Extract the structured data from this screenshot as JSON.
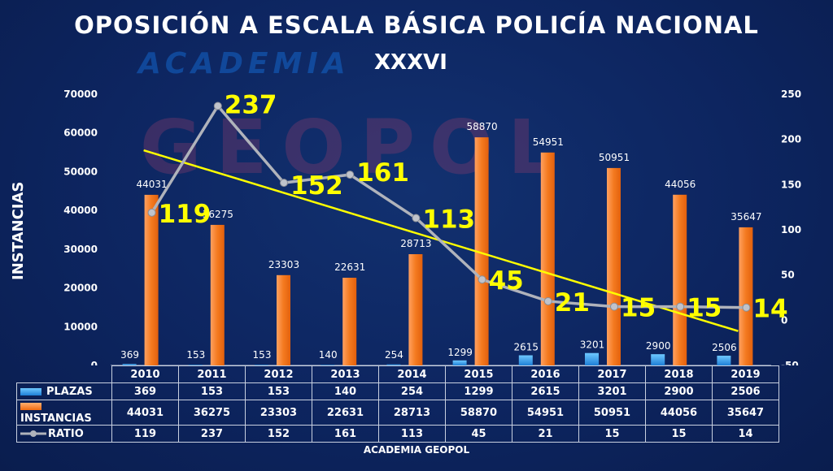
{
  "chart_data": {
    "type": "bar",
    "title": "OPOSICIÓN A ESCALA BÁSICA POLICÍA NACIONAL",
    "subtitle": "XXXVI",
    "watermarks": [
      "ACADEMIA",
      "GEOPOL"
    ],
    "ylabel": "INSTANCIAS",
    "categories": [
      "2010",
      "2011",
      "2012",
      "2013",
      "2014",
      "2015",
      "2016",
      "2017",
      "2018",
      "2019"
    ],
    "ylim": [
      0,
      70000
    ],
    "y_ticks": [
      "0",
      "10000",
      "20000",
      "30000",
      "40000",
      "50000",
      "60000",
      "70000"
    ],
    "y2lim": [
      -50,
      250
    ],
    "y2_ticks": [
      "-50",
      "0",
      "50",
      "100",
      "150",
      "200",
      "250"
    ],
    "series": [
      {
        "name": "PLAZAS",
        "type": "bar",
        "axis": "left",
        "color": "#1e8ee0",
        "values": [
          369,
          153,
          153,
          140,
          254,
          1299,
          2615,
          3201,
          2900,
          2506
        ]
      },
      {
        "name": "INSTANCIAS",
        "type": "bar",
        "axis": "left",
        "color": "#f47a1f",
        "values": [
          44031,
          36275,
          23303,
          22631,
          28713,
          58870,
          54951,
          50951,
          44056,
          35647
        ]
      },
      {
        "name": "RATIO",
        "type": "line",
        "axis": "right",
        "color": "#b0b3bb",
        "values": [
          119,
          237,
          152,
          161,
          113,
          45,
          21,
          15,
          15,
          14
        ]
      }
    ],
    "trendline": {
      "color": "#ffff00",
      "start": 188,
      "end": -12
    },
    "footer": "ACADEMIA GEOPOL"
  }
}
